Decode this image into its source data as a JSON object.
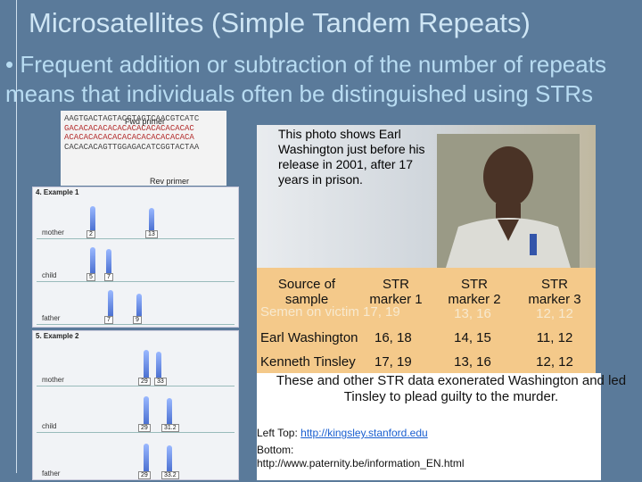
{
  "slide": {
    "title": "Microsatellites (Simple Tandem Repeats)",
    "bullet": "• Frequent addition or subtraction of the number of repeats means that individuals often be distinguished using STRs"
  },
  "sequence_figure": {
    "forward_primer_label": "Fwd primer",
    "reverse_primer_label": "Rev primer",
    "lines": [
      "AAGTGACTAGTACGTAGTCAACGTCATC",
      "GACACACACACACACACACACACACAC",
      "ACACACACACACACACACACACACACA",
      "CACACACAGTTGGAGACATCGGTACTAA"
    ]
  },
  "example1": {
    "label": "4. Example 1",
    "rows": [
      {
        "name": "mother",
        "peaks": [
          "2",
          "13"
        ]
      },
      {
        "name": "child",
        "peaks": [
          "5",
          "7"
        ]
      },
      {
        "name": "father",
        "peaks": [
          "7",
          "9"
        ]
      }
    ]
  },
  "example2": {
    "label": "5. Example 2",
    "rows": [
      {
        "name": "mother",
        "peaks": [
          "29",
          "33"
        ]
      },
      {
        "name": "child",
        "peaks": [
          "29",
          "31.2"
        ]
      },
      {
        "name": "father",
        "peaks": [
          "29",
          "33.2"
        ]
      }
    ]
  },
  "photo_caption": "This photo shows Earl Washington just before his release in 2001, after 17 years in prison.",
  "str_table": {
    "headers": [
      "Source of sample",
      "STR marker 1",
      "STR marker 2",
      "STR marker 3"
    ],
    "ghost_row": "Semen on victim 17, 19",
    "ghost_values": [
      "13, 16",
      "12, 12"
    ],
    "rows": [
      {
        "source": "Earl Washington",
        "m1": "16, 18",
        "m2": "14, 15",
        "m3": "11, 12"
      },
      {
        "source": "Kenneth Tinsley",
        "m1": "17, 19",
        "m2": "13, 16",
        "m3": "12, 12"
      }
    ]
  },
  "note": "These and other STR data exonerated Washington and led Tinsley to plead guilty to the murder.",
  "references": {
    "top_label": "Left Top:",
    "top_link": "http://kingsley.stanford.edu",
    "bottom_label": "Bottom:",
    "bottom_url": "http://www.paternity.be/information_EN.html"
  }
}
